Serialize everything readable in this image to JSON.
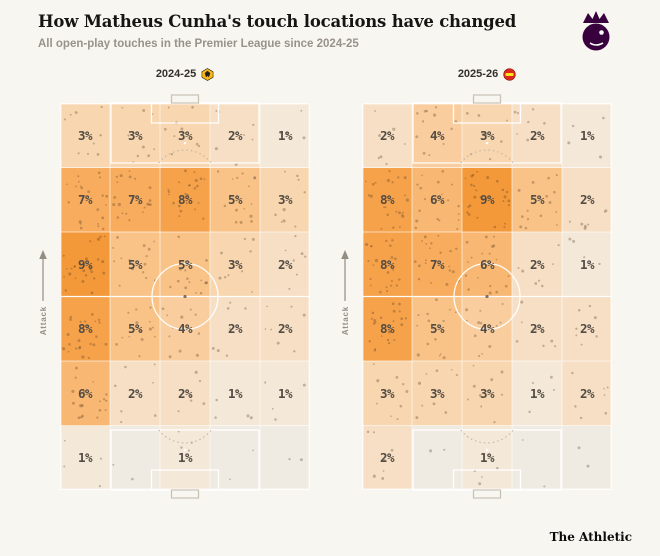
{
  "header": {
    "title": "How Matheus Cunha's touch locations have changed",
    "subtitle": "All open-play touches in the Premier League since 2024-25"
  },
  "footer": {
    "brand": "The Athletic"
  },
  "pitch": {
    "attack_label": "Attack"
  },
  "colors": {
    "background": "#f8f6f1",
    "pl_purple": "#38003c",
    "wolves_gold": "#FDB913",
    "man_united_red": "#DA291C",
    "cell_text": "#534c44",
    "pitch_line": "#ffffff",
    "scale": {
      "0": "#f0ebe2",
      "1": "#f4e8d8",
      "2": "#f7dfc5",
      "3": "#f8d6af",
      "4": "#f9cd9d",
      "5": "#f9c388",
      "6": "#f8b873",
      "7": "#f7ac5e",
      "8": "#f6a24b",
      "9": "#f49939"
    }
  },
  "chart_data": [
    {
      "type": "heatmap",
      "season": "2024-25",
      "team_badge": "wolves",
      "unit": "%",
      "orientation": "attack-up",
      "grid": {
        "columns": 5,
        "rows": 6
      },
      "values": [
        [
          3,
          3,
          3,
          2,
          1
        ],
        [
          7,
          7,
          8,
          5,
          3
        ],
        [
          9,
          5,
          5,
          3,
          2
        ],
        [
          8,
          5,
          4,
          2,
          2
        ],
        [
          6,
          2,
          2,
          1,
          1
        ],
        [
          1,
          null,
          1,
          null,
          null
        ]
      ]
    },
    {
      "type": "heatmap",
      "season": "2025-26",
      "team_badge": "man-united",
      "unit": "%",
      "orientation": "attack-up",
      "grid": {
        "columns": 5,
        "rows": 6
      },
      "values": [
        [
          2,
          4,
          3,
          2,
          1
        ],
        [
          8,
          6,
          9,
          5,
          2
        ],
        [
          8,
          7,
          6,
          2,
          1
        ],
        [
          8,
          5,
          4,
          2,
          2
        ],
        [
          3,
          3,
          3,
          1,
          2
        ],
        [
          2,
          null,
          1,
          null,
          null
        ]
      ]
    }
  ]
}
